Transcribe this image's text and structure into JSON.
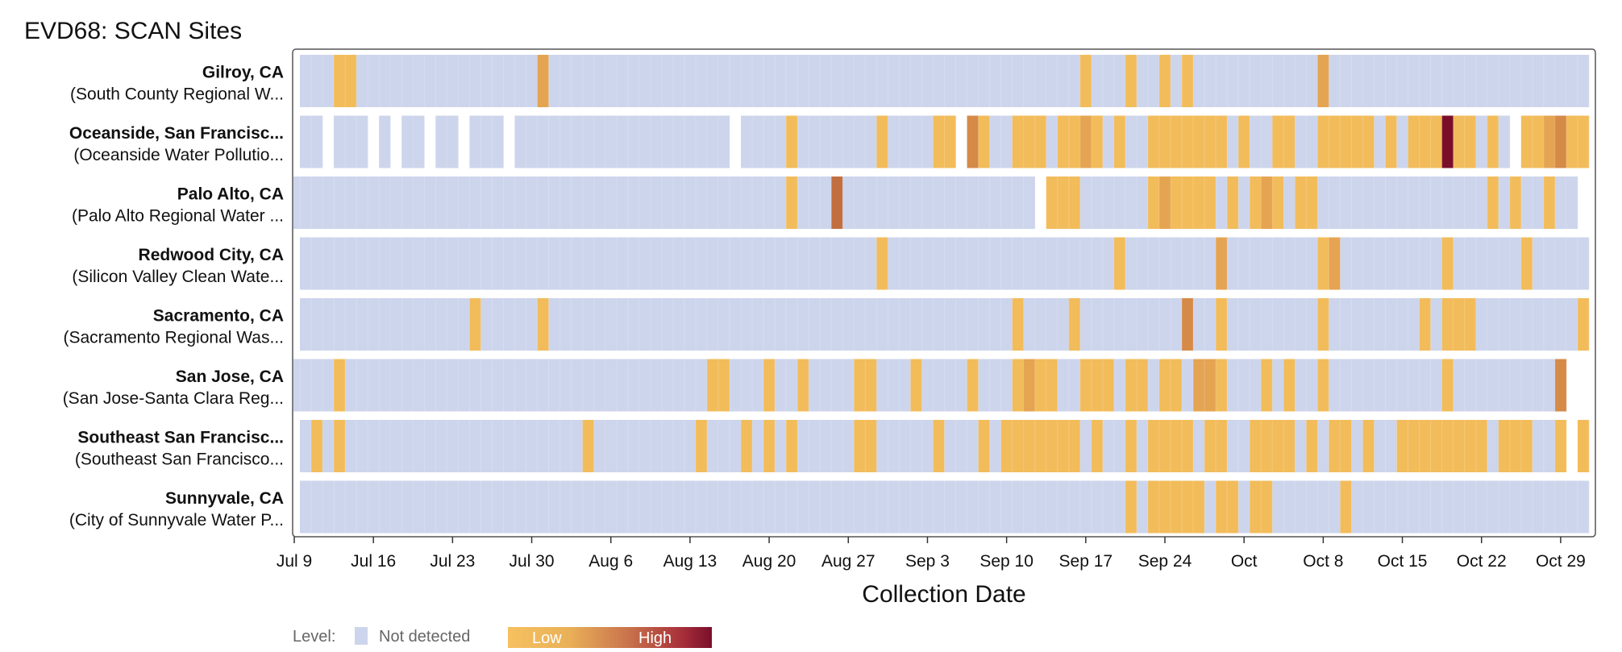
{
  "chart_data": {
    "type": "heatmap",
    "title": "EVD68: SCAN Sites",
    "xlabel": "Collection Date",
    "x_start": "2024-07-09",
    "x_end": "2024-10-31",
    "x_ticks": [
      {
        "date": "2024-07-09",
        "label": "Jul 9"
      },
      {
        "date": "2024-07-16",
        "label": "Jul 16"
      },
      {
        "date": "2024-07-23",
        "label": "Jul 23"
      },
      {
        "date": "2024-07-30",
        "label": "Jul 30"
      },
      {
        "date": "2024-08-06",
        "label": "Aug 6"
      },
      {
        "date": "2024-08-13",
        "label": "Aug 13"
      },
      {
        "date": "2024-08-20",
        "label": "Aug 20"
      },
      {
        "date": "2024-08-27",
        "label": "Aug 27"
      },
      {
        "date": "2024-09-03",
        "label": "Sep 3"
      },
      {
        "date": "2024-09-10",
        "label": "Sep 10"
      },
      {
        "date": "2024-09-17",
        "label": "Sep 17"
      },
      {
        "date": "2024-09-24",
        "label": "Sep 24"
      },
      {
        "date": "2024-10-01",
        "label": "Oct"
      },
      {
        "date": "2024-10-08",
        "label": "Oct 8"
      },
      {
        "date": "2024-10-15",
        "label": "Oct 15"
      },
      {
        "date": "2024-10-22",
        "label": "Oct 22"
      },
      {
        "date": "2024-10-29",
        "label": "Oct 29"
      }
    ],
    "default_level": 0,
    "sites": [
      {
        "name": "Gilroy, CA",
        "plant": "(South County Regional W...",
        "range": [
          "2024-07-10",
          "2024-10-31"
        ],
        "missing": [],
        "detections": [
          {
            "date": "2024-07-13",
            "level": 1
          },
          {
            "date": "2024-07-14",
            "level": 1
          },
          {
            "date": "2024-07-31",
            "level": 2
          },
          {
            "date": "2024-09-17",
            "level": 1
          },
          {
            "date": "2024-09-21",
            "level": 1
          },
          {
            "date": "2024-09-24",
            "level": 1
          },
          {
            "date": "2024-09-26",
            "level": 1
          },
          {
            "date": "2024-10-08",
            "level": 2
          }
        ]
      },
      {
        "name": "Oceanside, San Francisc...",
        "plant": "(Oceanside Water Pollutio...",
        "range": [
          "2024-07-10",
          "2024-10-31"
        ],
        "missing": [
          "2024-07-12",
          "2024-07-16",
          "2024-07-18",
          "2024-07-21",
          "2024-07-24",
          "2024-07-28",
          "2024-08-17",
          "2024-09-06",
          "2024-10-25"
        ],
        "detections": [
          {
            "date": "2024-08-22",
            "level": 1
          },
          {
            "date": "2024-08-30",
            "level": 1
          },
          {
            "date": "2024-09-04",
            "level": 1
          },
          {
            "date": "2024-09-05",
            "level": 1
          },
          {
            "date": "2024-09-07",
            "level": 3
          },
          {
            "date": "2024-09-08",
            "level": 1
          },
          {
            "date": "2024-09-11",
            "level": 1
          },
          {
            "date": "2024-09-12",
            "level": 1
          },
          {
            "date": "2024-09-13",
            "level": 1
          },
          {
            "date": "2024-09-15",
            "level": 1
          },
          {
            "date": "2024-09-16",
            "level": 1
          },
          {
            "date": "2024-09-17",
            "level": 2
          },
          {
            "date": "2024-09-18",
            "level": 1
          },
          {
            "date": "2024-09-20",
            "level": 1
          },
          {
            "date": "2024-09-23",
            "level": 1
          },
          {
            "date": "2024-09-24",
            "level": 1
          },
          {
            "date": "2024-09-25",
            "level": 1
          },
          {
            "date": "2024-09-26",
            "level": 1
          },
          {
            "date": "2024-09-27",
            "level": 1
          },
          {
            "date": "2024-09-28",
            "level": 1
          },
          {
            "date": "2024-09-29",
            "level": 1
          },
          {
            "date": "2024-10-01",
            "level": 1
          },
          {
            "date": "2024-10-04",
            "level": 1
          },
          {
            "date": "2024-10-05",
            "level": 1
          },
          {
            "date": "2024-10-08",
            "level": 1
          },
          {
            "date": "2024-10-09",
            "level": 1
          },
          {
            "date": "2024-10-10",
            "level": 1
          },
          {
            "date": "2024-10-11",
            "level": 1
          },
          {
            "date": "2024-10-12",
            "level": 1
          },
          {
            "date": "2024-10-14",
            "level": 1
          },
          {
            "date": "2024-10-16",
            "level": 1
          },
          {
            "date": "2024-10-17",
            "level": 1
          },
          {
            "date": "2024-10-18",
            "level": 1
          },
          {
            "date": "2024-10-19",
            "level": 6
          },
          {
            "date": "2024-10-20",
            "level": 1
          },
          {
            "date": "2024-10-21",
            "level": 1
          },
          {
            "date": "2024-10-23",
            "level": 1
          },
          {
            "date": "2024-10-26",
            "level": 1
          },
          {
            "date": "2024-10-27",
            "level": 1
          },
          {
            "date": "2024-10-28",
            "level": 2
          },
          {
            "date": "2024-10-29",
            "level": 3
          },
          {
            "date": "2024-10-30",
            "level": 1
          },
          {
            "date": "2024-10-31",
            "level": 1
          }
        ]
      },
      {
        "name": "Palo Alto, CA",
        "plant": "(Palo Alto Regional Water ...",
        "range": [
          "2024-07-09",
          "2024-10-30"
        ],
        "missing": [
          "2024-09-13"
        ],
        "detections": [
          {
            "date": "2024-08-22",
            "level": 1
          },
          {
            "date": "2024-08-26",
            "level": 4
          },
          {
            "date": "2024-09-14",
            "level": 1
          },
          {
            "date": "2024-09-15",
            "level": 1
          },
          {
            "date": "2024-09-16",
            "level": 1
          },
          {
            "date": "2024-09-23",
            "level": 1
          },
          {
            "date": "2024-09-24",
            "level": 2
          },
          {
            "date": "2024-09-25",
            "level": 1
          },
          {
            "date": "2024-09-26",
            "level": 1
          },
          {
            "date": "2024-09-27",
            "level": 1
          },
          {
            "date": "2024-09-28",
            "level": 1
          },
          {
            "date": "2024-09-30",
            "level": 1
          },
          {
            "date": "2024-10-02",
            "level": 1
          },
          {
            "date": "2024-10-03",
            "level": 2
          },
          {
            "date": "2024-10-04",
            "level": 1
          },
          {
            "date": "2024-10-06",
            "level": 1
          },
          {
            "date": "2024-10-07",
            "level": 1
          },
          {
            "date": "2024-10-23",
            "level": 1
          },
          {
            "date": "2024-10-25",
            "level": 1
          },
          {
            "date": "2024-10-28",
            "level": 1
          }
        ]
      },
      {
        "name": "Redwood City, CA",
        "plant": "(Silicon Valley Clean Wate...",
        "range": [
          "2024-07-10",
          "2024-10-31"
        ],
        "missing": [],
        "detections": [
          {
            "date": "2024-08-30",
            "level": 1
          },
          {
            "date": "2024-09-20",
            "level": 1
          },
          {
            "date": "2024-09-29",
            "level": 2
          },
          {
            "date": "2024-10-08",
            "level": 1
          },
          {
            "date": "2024-10-09",
            "level": 2
          },
          {
            "date": "2024-10-19",
            "level": 1
          },
          {
            "date": "2024-10-26",
            "level": 1
          }
        ]
      },
      {
        "name": "Sacramento, CA",
        "plant": "(Sacramento Regional Was...",
        "range": [
          "2024-07-10",
          "2024-10-31"
        ],
        "missing": [],
        "detections": [
          {
            "date": "2024-07-25",
            "level": 1
          },
          {
            "date": "2024-07-31",
            "level": 1
          },
          {
            "date": "2024-09-11",
            "level": 1
          },
          {
            "date": "2024-09-16",
            "level": 1
          },
          {
            "date": "2024-09-26",
            "level": 3
          },
          {
            "date": "2024-09-29",
            "level": 1
          },
          {
            "date": "2024-10-08",
            "level": 1
          },
          {
            "date": "2024-10-17",
            "level": 1
          },
          {
            "date": "2024-10-19",
            "level": 1
          },
          {
            "date": "2024-10-20",
            "level": 1
          },
          {
            "date": "2024-10-21",
            "level": 1
          },
          {
            "date": "2024-10-31",
            "level": 1
          }
        ]
      },
      {
        "name": "San Jose, CA",
        "plant": "(San Jose-Santa Clara Reg...",
        "range": [
          "2024-07-09",
          "2024-10-29"
        ],
        "missing": [],
        "detections": [
          {
            "date": "2024-07-13",
            "level": 1
          },
          {
            "date": "2024-08-15",
            "level": 1
          },
          {
            "date": "2024-08-16",
            "level": 1
          },
          {
            "date": "2024-08-20",
            "level": 1
          },
          {
            "date": "2024-08-23",
            "level": 1
          },
          {
            "date": "2024-08-28",
            "level": 1
          },
          {
            "date": "2024-08-29",
            "level": 1
          },
          {
            "date": "2024-09-02",
            "level": 1
          },
          {
            "date": "2024-09-07",
            "level": 1
          },
          {
            "date": "2024-09-11",
            "level": 1
          },
          {
            "date": "2024-09-12",
            "level": 2
          },
          {
            "date": "2024-09-13",
            "level": 1
          },
          {
            "date": "2024-09-14",
            "level": 1
          },
          {
            "date": "2024-09-17",
            "level": 1
          },
          {
            "date": "2024-09-18",
            "level": 1
          },
          {
            "date": "2024-09-19",
            "level": 1
          },
          {
            "date": "2024-09-21",
            "level": 1
          },
          {
            "date": "2024-09-22",
            "level": 1
          },
          {
            "date": "2024-09-24",
            "level": 1
          },
          {
            "date": "2024-09-25",
            "level": 1
          },
          {
            "date": "2024-09-27",
            "level": 2
          },
          {
            "date": "2024-09-28",
            "level": 2
          },
          {
            "date": "2024-09-29",
            "level": 1
          },
          {
            "date": "2024-10-03",
            "level": 1
          },
          {
            "date": "2024-10-05",
            "level": 1
          },
          {
            "date": "2024-10-08",
            "level": 1
          },
          {
            "date": "2024-10-19",
            "level": 1
          },
          {
            "date": "2024-10-29",
            "level": 3
          }
        ]
      },
      {
        "name": "Southeast San Francisc...",
        "plant": "(Southeast San Francisco...",
        "range": [
          "2024-07-10",
          "2024-10-31"
        ],
        "missing": [
          "2024-10-30"
        ],
        "detections": [
          {
            "date": "2024-07-11",
            "level": 1
          },
          {
            "date": "2024-07-13",
            "level": 1
          },
          {
            "date": "2024-08-04",
            "level": 1
          },
          {
            "date": "2024-08-14",
            "level": 1
          },
          {
            "date": "2024-08-18",
            "level": 1
          },
          {
            "date": "2024-08-20",
            "level": 1
          },
          {
            "date": "2024-08-22",
            "level": 1
          },
          {
            "date": "2024-08-28",
            "level": 1
          },
          {
            "date": "2024-08-29",
            "level": 1
          },
          {
            "date": "2024-09-04",
            "level": 1
          },
          {
            "date": "2024-09-08",
            "level": 1
          },
          {
            "date": "2024-09-10",
            "level": 1
          },
          {
            "date": "2024-09-11",
            "level": 1
          },
          {
            "date": "2024-09-12",
            "level": 1
          },
          {
            "date": "2024-09-13",
            "level": 1
          },
          {
            "date": "2024-09-14",
            "level": 1
          },
          {
            "date": "2024-09-15",
            "level": 1
          },
          {
            "date": "2024-09-16",
            "level": 1
          },
          {
            "date": "2024-09-18",
            "level": 1
          },
          {
            "date": "2024-09-21",
            "level": 1
          },
          {
            "date": "2024-09-23",
            "level": 1
          },
          {
            "date": "2024-09-24",
            "level": 1
          },
          {
            "date": "2024-09-25",
            "level": 1
          },
          {
            "date": "2024-09-26",
            "level": 1
          },
          {
            "date": "2024-09-28",
            "level": 1
          },
          {
            "date": "2024-09-29",
            "level": 1
          },
          {
            "date": "2024-10-02",
            "level": 1
          },
          {
            "date": "2024-10-03",
            "level": 1
          },
          {
            "date": "2024-10-04",
            "level": 1
          },
          {
            "date": "2024-10-05",
            "level": 1
          },
          {
            "date": "2024-10-07",
            "level": 1
          },
          {
            "date": "2024-10-09",
            "level": 1
          },
          {
            "date": "2024-10-10",
            "level": 1
          },
          {
            "date": "2024-10-12",
            "level": 1
          },
          {
            "date": "2024-10-15",
            "level": 1
          },
          {
            "date": "2024-10-16",
            "level": 1
          },
          {
            "date": "2024-10-17",
            "level": 1
          },
          {
            "date": "2024-10-18",
            "level": 1
          },
          {
            "date": "2024-10-19",
            "level": 1
          },
          {
            "date": "2024-10-20",
            "level": 1
          },
          {
            "date": "2024-10-21",
            "level": 1
          },
          {
            "date": "2024-10-22",
            "level": 1
          },
          {
            "date": "2024-10-24",
            "level": 1
          },
          {
            "date": "2024-10-25",
            "level": 1
          },
          {
            "date": "2024-10-26",
            "level": 1
          },
          {
            "date": "2024-10-29",
            "level": 1
          },
          {
            "date": "2024-10-31",
            "level": 1
          }
        ]
      },
      {
        "name": "Sunnyvale, CA",
        "plant": "(City of Sunnyvale Water P...",
        "range": [
          "2024-07-10",
          "2024-10-31"
        ],
        "missing": [],
        "detections": [
          {
            "date": "2024-09-21",
            "level": 1
          },
          {
            "date": "2024-09-23",
            "level": 1
          },
          {
            "date": "2024-09-24",
            "level": 1
          },
          {
            "date": "2024-09-25",
            "level": 1
          },
          {
            "date": "2024-09-26",
            "level": 1
          },
          {
            "date": "2024-09-27",
            "level": 1
          },
          {
            "date": "2024-09-29",
            "level": 1
          },
          {
            "date": "2024-09-30",
            "level": 1
          },
          {
            "date": "2024-10-02",
            "level": 1
          },
          {
            "date": "2024-10-03",
            "level": 1
          },
          {
            "date": "2024-10-10",
            "level": 1
          }
        ]
      }
    ],
    "color_scale": {
      "not_detected": "#cdd5ec",
      "levels": [
        "#cdd5ec",
        "#f2bc5b",
        "#e5a452",
        "#d58a48",
        "#c26f40",
        "#a24034",
        "#7a0e2a"
      ]
    },
    "legend": {
      "position": "bottom-left",
      "title": "Level:",
      "not_detected_label": "Not detected",
      "low_label": "Low",
      "high_label": "High"
    }
  }
}
